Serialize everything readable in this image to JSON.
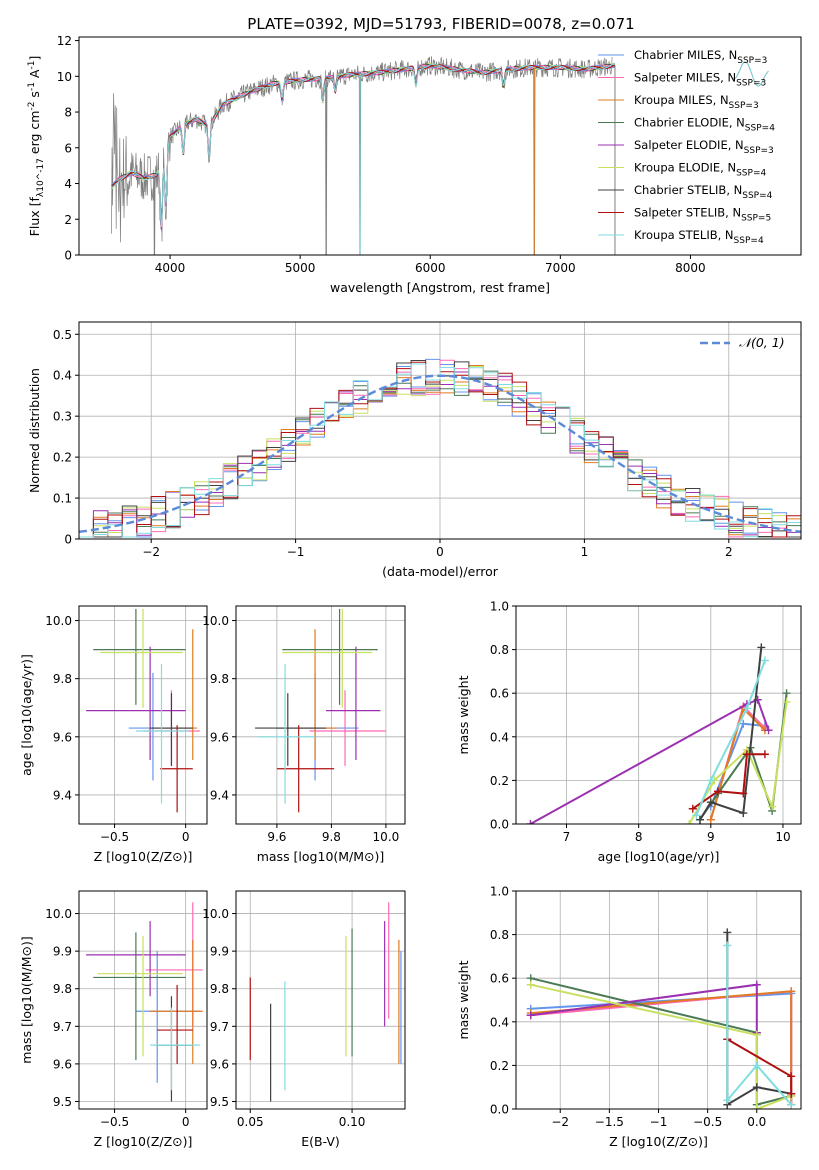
{
  "figure": {
    "title": "PLATE=0392, MJD=51793, FIBERID=0078, z=0.071"
  },
  "colors": {
    "Chabrier MILES": "#6495ed",
    "Salpeter MILES": "#ff69b4",
    "Kroupa MILES": "#e07b22",
    "Chabrier ELODIE": "#4a7a54",
    "Salpeter ELODIE": "#9b30b0",
    "Kroupa ELODIE": "#c8e060",
    "Chabrier STELIB": "#404040",
    "Salpeter STELIB": "#b01010",
    "Kroupa STELIB": "#80dde0",
    "normal": "#5b8ad8",
    "data": "#7f7f7f"
  },
  "chart_data": [
    {
      "id": "spectrum",
      "type": "line",
      "xlabel": "wavelength [Angstrom, rest frame]",
      "ylabel": "Flux [f_λ10^-17 erg cm^-2 s^-1 A^-1]",
      "xlim": [
        3300,
        8850
      ],
      "ylim": [
        0,
        12.2
      ],
      "xticks": [
        4000,
        5000,
        6000,
        7000,
        8000
      ],
      "yticks": [
        0,
        2,
        4,
        6,
        8,
        10,
        12
      ],
      "grid": false,
      "legend_position": "right",
      "legend": [
        {
          "label": "Chabrier MILES, N_SSP=3",
          "series": "Chabrier MILES"
        },
        {
          "label": "Salpeter MILES, N_SSP=3",
          "series": "Salpeter MILES"
        },
        {
          "label": "Kroupa MILES, N_SSP=3",
          "series": "Kroupa MILES"
        },
        {
          "label": "Chabrier ELODIE, N_SSP=4",
          "series": "Chabrier ELODIE"
        },
        {
          "label": "Salpeter ELODIE, N_SSP=3",
          "series": "Salpeter ELODIE"
        },
        {
          "label": "Kroupa ELODIE, N_SSP=4",
          "series": "Kroupa ELODIE"
        },
        {
          "label": "Chabrier STELIB, N_SSP=4",
          "series": "Chabrier STELIB"
        },
        {
          "label": "Salpeter STELIB, N_SSP=5",
          "series": "Salpeter STELIB"
        },
        {
          "label": "Kroupa STELIB, N_SSP=4",
          "series": "Kroupa STELIB"
        }
      ],
      "continuum": {
        "x": [
          3550,
          3600,
          3700,
          3800,
          3900,
          4000,
          4100,
          4200,
          4300,
          4400,
          4600,
          4800,
          5000,
          5200,
          5400,
          5600,
          5800,
          6000,
          6200,
          6400,
          6600,
          6800,
          7000,
          7200,
          7400,
          7500,
          7800,
          8000,
          8200,
          8400,
          8500,
          8600
        ],
        "y": [
          3.8,
          4.2,
          4.6,
          4.3,
          4.5,
          6.6,
          7.3,
          7.6,
          7.2,
          8.4,
          9.1,
          9.6,
          9.8,
          9.9,
          10.1,
          10.2,
          10.4,
          10.6,
          10.4,
          10.2,
          10.4,
          10.5,
          10.5,
          10.4,
          10.6,
          10.6,
          10.7,
          10.5,
          10.3,
          10.4,
          10.0,
          9.8
        ]
      },
      "model_range": [
        3550,
        7420
      ],
      "extra_model_range": [
        8300,
        8600
      ],
      "data_range": [
        3550,
        7400
      ],
      "dips": [
        {
          "x": 3933,
          "depth": 3.8
        },
        {
          "x": 3968,
          "depth": 3.2
        },
        {
          "x": 4101,
          "depth": 1.6
        },
        {
          "x": 4300,
          "depth": 1.6
        },
        {
          "x": 4861,
          "depth": 1.0
        },
        {
          "x": 5175,
          "depth": 1.2
        },
        {
          "x": 5270,
          "depth": 0.8
        },
        {
          "x": 5890,
          "depth": 1.0
        },
        {
          "x": 6563,
          "depth": 0.9
        }
      ],
      "spikes": [
        {
          "x": 3880,
          "y": 0
        },
        {
          "x": 5200,
          "y": 0
        },
        {
          "x": 5460,
          "y": 0
        },
        {
          "x": 6800,
          "y": 0
        },
        {
          "x": 7420,
          "y": 0
        }
      ]
    },
    {
      "id": "residuals",
      "type": "line",
      "xlabel": "(data-model)/error",
      "ylabel": "Normed distribution",
      "xlim": [
        -2.5,
        2.5
      ],
      "ylim": [
        0,
        0.53
      ],
      "xticks": [
        -2,
        -1,
        0,
        1,
        2
      ],
      "yticks": [
        0.0,
        0.1,
        0.2,
        0.3,
        0.4,
        0.5
      ],
      "grid": true,
      "legend": [
        {
          "label": "𝒩(0, 1)",
          "series": "normal"
        }
      ],
      "legend_position": "top-right",
      "histogram_bins": 50,
      "series_names": [
        "Chabrier MILES",
        "Salpeter MILES",
        "Kroupa MILES",
        "Chabrier ELODIE",
        "Salpeter ELODIE",
        "Kroupa ELODIE",
        "Chabrier STELIB",
        "Salpeter STELIB",
        "Kroupa STELIB"
      ]
    },
    {
      "id": "age-z",
      "type": "scatter",
      "xlabel": "Z [log10(Z/Z⊙)]",
      "ylabel": "age [log10(age/yr)]",
      "xlim": [
        -0.75,
        0.15
      ],
      "ylim": [
        9.3,
        10.05
      ],
      "xticks": [
        -0.5,
        0.0
      ],
      "yticks": [
        9.4,
        9.6,
        9.8,
        10.0
      ],
      "grid": true,
      "points": [
        {
          "series": "Chabrier MILES",
          "x": -0.23,
          "y": 9.63,
          "ex": [
            -0.4,
            0.05
          ],
          "ey": [
            9.45,
            9.82
          ]
        },
        {
          "series": "Salpeter MILES",
          "x": -0.1,
          "y": 9.62,
          "ex": [
            -0.3,
            0.1
          ],
          "ey": [
            9.5,
            9.76
          ]
        },
        {
          "series": "Kroupa MILES",
          "x": 0.05,
          "y": 9.63,
          "ex": [
            -0.18,
            0.08
          ],
          "ey": [
            9.52,
            9.97
          ]
        },
        {
          "series": "Chabrier ELODIE",
          "x": -0.35,
          "y": 9.9,
          "ex": [
            -0.65,
            0.0
          ],
          "ey": [
            9.71,
            10.04
          ]
        },
        {
          "series": "Salpeter ELODIE",
          "x": -0.25,
          "y": 9.69,
          "ex": [
            -0.7,
            0.0
          ],
          "ey": [
            9.52,
            9.91
          ]
        },
        {
          "series": "Kroupa ELODIE",
          "x": -0.3,
          "y": 9.89,
          "ex": [
            -0.6,
            -0.02
          ],
          "ey": [
            9.7,
            10.04
          ]
        },
        {
          "series": "Chabrier STELIB",
          "x": -0.1,
          "y": 9.63,
          "ex": [
            -0.25,
            0.05
          ],
          "ey": [
            9.5,
            9.75
          ]
        },
        {
          "series": "Salpeter STELIB",
          "x": -0.06,
          "y": 9.49,
          "ex": [
            -0.18,
            0.05
          ],
          "ey": [
            9.34,
            9.64
          ]
        },
        {
          "series": "Kroupa STELIB",
          "x": -0.17,
          "y": 9.62,
          "ex": [
            -0.35,
            0.02
          ],
          "ey": [
            9.37,
            9.85
          ]
        }
      ]
    },
    {
      "id": "age-mass",
      "type": "scatter",
      "xlabel": "mass [log10(M/M⊙)]",
      "ylabel": "",
      "xlim": [
        9.45,
        10.07
      ],
      "ylim": [
        9.3,
        10.05
      ],
      "xticks": [
        9.6,
        9.8,
        10.0
      ],
      "yticks": [
        9.4,
        9.6,
        9.8,
        10.0
      ],
      "grid": true,
      "points": [
        {
          "series": "Chabrier MILES",
          "x": 9.74,
          "y": 9.63,
          "ex": [
            9.6,
            9.9
          ],
          "ey": [
            9.45,
            9.82
          ]
        },
        {
          "series": "Salpeter MILES",
          "x": 9.85,
          "y": 9.62,
          "ex": [
            9.72,
            10.0
          ],
          "ey": [
            9.5,
            9.76
          ]
        },
        {
          "series": "Kroupa MILES",
          "x": 9.74,
          "y": 9.63,
          "ex": [
            9.6,
            9.82
          ],
          "ey": [
            9.52,
            9.97
          ]
        },
        {
          "series": "Chabrier ELODIE",
          "x": 9.83,
          "y": 9.9,
          "ex": [
            9.62,
            9.97
          ],
          "ey": [
            9.71,
            10.04
          ]
        },
        {
          "series": "Salpeter ELODIE",
          "x": 9.89,
          "y": 9.69,
          "ex": [
            9.78,
            9.98
          ],
          "ey": [
            9.52,
            9.91
          ]
        },
        {
          "series": "Kroupa ELODIE",
          "x": 9.84,
          "y": 9.89,
          "ex": [
            9.62,
            9.95
          ],
          "ey": [
            9.7,
            10.04
          ]
        },
        {
          "series": "Chabrier STELIB",
          "x": 9.64,
          "y": 9.63,
          "ex": [
            9.52,
            9.78
          ],
          "ey": [
            9.5,
            9.75
          ]
        },
        {
          "series": "Salpeter STELIB",
          "x": 9.68,
          "y": 9.49,
          "ex": [
            9.6,
            9.81
          ],
          "ey": [
            9.34,
            9.64
          ]
        },
        {
          "series": "Kroupa STELIB",
          "x": 9.63,
          "y": 9.6,
          "ex": [
            9.53,
            9.74
          ],
          "ey": [
            9.37,
            9.85
          ]
        }
      ]
    },
    {
      "id": "weight-age",
      "type": "line",
      "xlabel": "age [log10(age/yr)]",
      "ylabel": "mass weight",
      "xlim": [
        6.3,
        10.25
      ],
      "ylim": [
        0,
        1.0
      ],
      "xticks": [
        7,
        8,
        9,
        10
      ],
      "yticks": [
        0.0,
        0.2,
        0.4,
        0.6,
        0.8,
        1.0
      ],
      "grid": true,
      "series": [
        {
          "name": "Chabrier MILES",
          "x": [
            9.0,
            9.45,
            9.75
          ],
          "y": [
            0.08,
            0.46,
            0.45
          ]
        },
        {
          "name": "Salpeter MILES",
          "x": [
            9.0,
            9.45,
            9.75
          ],
          "y": [
            0.02,
            0.54,
            0.44
          ]
        },
        {
          "name": "Kroupa MILES",
          "x": [
            9.0,
            9.45,
            9.75
          ],
          "y": [
            0.02,
            0.53,
            0.43
          ]
        },
        {
          "name": "Chabrier ELODIE",
          "x": [
            8.85,
            9.1,
            9.55,
            9.85,
            10.05
          ],
          "y": [
            0.02,
            0.14,
            0.35,
            0.06,
            0.6
          ]
        },
        {
          "name": "Salpeter ELODIE",
          "x": [
            6.5,
            9.5,
            9.65,
            9.8
          ],
          "y": [
            0.0,
            0.55,
            0.57,
            0.43
          ]
        },
        {
          "name": "Kroupa ELODIE",
          "x": [
            8.7,
            9.05,
            9.5,
            9.85,
            10.05
          ],
          "y": [
            0.0,
            0.2,
            0.34,
            0.08,
            0.56
          ]
        },
        {
          "name": "Chabrier STELIB",
          "x": [
            8.85,
            9.0,
            9.45,
            9.7
          ],
          "y": [
            0.02,
            0.1,
            0.05,
            0.81
          ]
        },
        {
          "name": "Salpeter STELIB",
          "x": [
            8.75,
            9.1,
            9.45,
            9.5,
            9.75
          ],
          "y": [
            0.07,
            0.15,
            0.14,
            0.32,
            0.32
          ]
        },
        {
          "name": "Kroupa STELIB",
          "x": [
            8.8,
            9.0,
            9.5,
            9.75
          ],
          "y": [
            0.04,
            0.2,
            0.53,
            0.75
          ]
        }
      ]
    },
    {
      "id": "mass-z",
      "type": "scatter",
      "xlabel": "Z [log10(Z/Z⊙)]",
      "ylabel": "mass [log10(M/M⊙)]",
      "xlim": [
        -0.75,
        0.15
      ],
      "ylim": [
        9.48,
        10.06
      ],
      "xticks": [
        -0.5,
        0.0
      ],
      "yticks": [
        9.5,
        9.6,
        9.7,
        9.8,
        9.9,
        10.0
      ],
      "grid": true,
      "points": [
        {
          "series": "Chabrier MILES",
          "x": -0.2,
          "y": 9.74,
          "ex": [
            -0.35,
            0.1
          ],
          "ey": [
            9.55,
            9.9
          ]
        },
        {
          "series": "Salpeter MILES",
          "x": 0.05,
          "y": 9.85,
          "ex": [
            -0.28,
            0.12
          ],
          "ey": [
            9.7,
            10.03
          ]
        },
        {
          "series": "Kroupa MILES",
          "x": 0.05,
          "y": 9.74,
          "ex": [
            -0.25,
            0.12
          ],
          "ey": [
            9.6,
            9.93
          ]
        },
        {
          "series": "Chabrier ELODIE",
          "x": -0.35,
          "y": 9.83,
          "ex": [
            -0.65,
            0.0
          ],
          "ey": [
            9.61,
            9.95
          ]
        },
        {
          "series": "Salpeter ELODIE",
          "x": -0.25,
          "y": 9.89,
          "ex": [
            -0.7,
            0.0
          ],
          "ey": [
            9.78,
            9.98
          ]
        },
        {
          "series": "Kroupa ELODIE",
          "x": -0.3,
          "y": 9.84,
          "ex": [
            -0.62,
            -0.02
          ],
          "ey": [
            9.62,
            9.94
          ]
        },
        {
          "series": "Chabrier STELIB",
          "x": -0.1,
          "y": 9.65,
          "ex": [
            -0.2,
            0.05
          ],
          "ey": [
            9.5,
            9.78
          ]
        },
        {
          "series": "Salpeter STELIB",
          "x": -0.06,
          "y": 9.69,
          "ex": [
            -0.2,
            0.05
          ],
          "ey": [
            9.6,
            9.81
          ]
        },
        {
          "series": "Kroupa STELIB",
          "x": -0.1,
          "y": 9.65,
          "ex": [
            -0.25,
            0.1
          ],
          "ey": [
            9.53,
            9.75
          ]
        }
      ]
    },
    {
      "id": "mass-ebv",
      "type": "scatter",
      "xlabel": "E(B-V)",
      "ylabel": "",
      "xlim": [
        0.043,
        0.126
      ],
      "ylim": [
        9.48,
        10.06
      ],
      "xticks": [
        0.05,
        0.1
      ],
      "yticks": [
        9.5,
        9.6,
        9.7,
        9.8,
        9.9,
        10.0
      ],
      "grid": true,
      "points": [
        {
          "series": "Chabrier MILES",
          "x": 0.124,
          "y": 9.74,
          "ey": [
            9.6,
            9.9
          ]
        },
        {
          "series": "Salpeter MILES",
          "x": 0.118,
          "y": 9.85,
          "ey": [
            9.72,
            10.03
          ]
        },
        {
          "series": "Kroupa MILES",
          "x": 0.123,
          "y": 9.74,
          "ey": [
            9.6,
            9.93
          ]
        },
        {
          "series": "Chabrier ELODIE",
          "x": 0.1,
          "y": 9.83,
          "ey": [
            9.62,
            9.96
          ]
        },
        {
          "series": "Salpeter ELODIE",
          "x": 0.116,
          "y": 9.89,
          "ey": [
            9.7,
            9.98
          ]
        },
        {
          "series": "Kroupa ELODIE",
          "x": 0.097,
          "y": 9.84,
          "ey": [
            9.62,
            9.94
          ]
        },
        {
          "series": "Chabrier STELIB",
          "x": 0.06,
          "y": 9.65,
          "ey": [
            9.5,
            9.76
          ]
        },
        {
          "series": "Salpeter STELIB",
          "x": 0.05,
          "y": 9.69,
          "ey": [
            9.61,
            9.83
          ]
        },
        {
          "series": "Kroupa STELIB",
          "x": 0.067,
          "y": 9.65,
          "ey": [
            9.53,
            9.82
          ]
        }
      ]
    },
    {
      "id": "weight-z",
      "type": "line",
      "xlabel": "Z [log10(Z/Z⊙)]",
      "ylabel": "mass weight",
      "xlim": [
        -2.45,
        0.45
      ],
      "ylim": [
        0,
        1.0
      ],
      "xticks": [
        -2.0,
        -1.5,
        -1.0,
        -0.5,
        0.0
      ],
      "yticks": [
        0.0,
        0.2,
        0.4,
        0.6,
        0.8,
        1.0
      ],
      "grid": true,
      "series": [
        {
          "name": "Chabrier MILES",
          "x": [
            -2.3,
            0.35,
            0.35
          ],
          "y": [
            0.46,
            0.53,
            0.02
          ]
        },
        {
          "name": "Salpeter MILES",
          "x": [
            -2.3,
            0.35,
            0.35
          ],
          "y": [
            0.43,
            0.54,
            0.02
          ]
        },
        {
          "name": "Kroupa MILES",
          "x": [
            -2.3,
            0.35,
            0.35
          ],
          "y": [
            0.44,
            0.54,
            0.02
          ]
        },
        {
          "name": "Chabrier ELODIE",
          "x": [
            -2.3,
            0.0,
            0.0,
            0.35
          ],
          "y": [
            0.6,
            0.35,
            0.02,
            0.06
          ]
        },
        {
          "name": "Salpeter ELODIE",
          "x": [
            -2.3,
            0.0,
            0.0
          ],
          "y": [
            0.43,
            0.57,
            0.35
          ]
        },
        {
          "name": "Kroupa ELODIE",
          "x": [
            -2.3,
            0.0,
            0.0,
            0.35
          ],
          "y": [
            0.57,
            0.34,
            0.0,
            0.06
          ]
        },
        {
          "name": "Chabrier STELIB",
          "x": [
            -0.3,
            -0.3,
            0.0,
            0.35
          ],
          "y": [
            0.81,
            0.02,
            0.1,
            0.07
          ]
        },
        {
          "name": "Salpeter STELIB",
          "x": [
            -0.3,
            0.35,
            0.35
          ],
          "y": [
            0.32,
            0.15,
            0.07
          ]
        },
        {
          "name": "Kroupa STELIB",
          "x": [
            -0.3,
            -0.3,
            0.0,
            0.35
          ],
          "y": [
            0.75,
            0.04,
            0.2,
            0.02
          ]
        }
      ]
    }
  ]
}
